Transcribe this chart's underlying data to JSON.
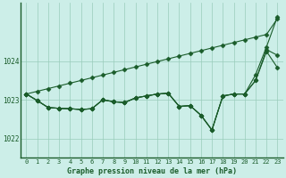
{
  "background_color": "#cceee8",
  "grid_color": "#99ccbb",
  "line_color": "#1a5c2a",
  "xlabel": "Graphe pression niveau de la mer (hPa)",
  "xlim": [
    -0.5,
    23.5
  ],
  "ylim": [
    1021.5,
    1025.5
  ],
  "yticks": [
    1022,
    1023,
    1024
  ],
  "xticks": [
    0,
    1,
    2,
    3,
    4,
    5,
    6,
    7,
    8,
    9,
    10,
    11,
    12,
    13,
    14,
    15,
    16,
    17,
    18,
    19,
    20,
    21,
    22,
    23
  ],
  "line1": [
    1023.15,
    1023.22,
    1023.29,
    1023.36,
    1023.43,
    1023.5,
    1023.57,
    1023.64,
    1023.71,
    1023.78,
    1023.85,
    1023.92,
    1023.99,
    1024.06,
    1024.13,
    1024.2,
    1024.27,
    1024.34,
    1024.41,
    1024.48,
    1024.55,
    1024.62,
    1024.69,
    1025.1
  ],
  "line2": [
    1023.15,
    1022.98,
    1022.8,
    1022.78,
    1022.77,
    1022.75,
    1022.77,
    1023.0,
    1022.95,
    1022.93,
    1023.05,
    1023.1,
    1023.15,
    1023.17,
    1022.83,
    1022.85,
    1022.6,
    1022.22,
    1023.1,
    1023.15,
    1023.15,
    1023.5,
    1024.25,
    1023.83
  ],
  "line3": [
    1023.15,
    1022.98,
    1022.8,
    1022.78,
    1022.77,
    1022.75,
    1022.77,
    1023.0,
    1022.95,
    1022.93,
    1023.05,
    1023.1,
    1023.15,
    1023.17,
    1022.83,
    1022.85,
    1022.6,
    1022.22,
    1023.1,
    1023.15,
    1023.15,
    1023.5,
    1024.3,
    1024.15
  ],
  "line4": [
    1023.15,
    1022.98,
    1022.8,
    1022.78,
    1022.77,
    1022.75,
    1022.77,
    1023.0,
    1022.95,
    1022.93,
    1023.05,
    1023.1,
    1023.15,
    1023.17,
    1022.83,
    1022.85,
    1022.6,
    1022.22,
    1023.1,
    1023.15,
    1023.15,
    1023.65,
    1024.37,
    1025.15
  ],
  "marker": "D",
  "markersize": 2.5,
  "linewidth": 0.8
}
